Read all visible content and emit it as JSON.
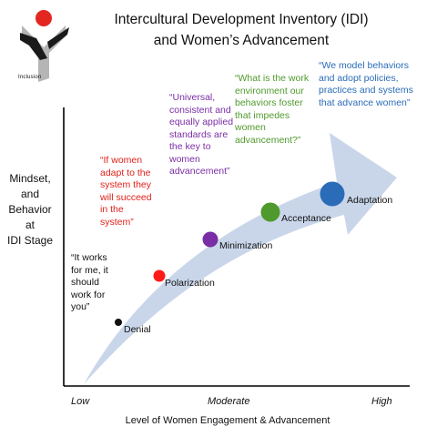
{
  "header": {
    "title_line1": "Intercultural Development Inventory (IDI)",
    "title_line2": "and Women’s Advancement"
  },
  "logo": {
    "text": "Inclusion",
    "colors": {
      "red": "#e3261f",
      "black": "#1a1a1a",
      "gray": "#b5b5b5"
    }
  },
  "axes": {
    "y_label_lines": [
      "Mindset,",
      "and",
      "Behavior",
      "at",
      "IDI Stage"
    ],
    "x_label": "Level of Women Engagement & Advancement",
    "x_ticks": [
      "Low",
      "Moderate",
      "High"
    ]
  },
  "stages": [
    {
      "label": "Denial",
      "color": "#111111"
    },
    {
      "label": "Polarization",
      "color": "#ff1a1a"
    },
    {
      "label": "Minimization",
      "color": "#7a2ea5"
    },
    {
      "label": "Acceptance",
      "color": "#4f9a2c"
    },
    {
      "label": "Adaptation",
      "color": "#2a6cb8"
    }
  ],
  "quotes": [
    {
      "lines": [
        "“It works",
        "for me, it",
        "should",
        "work for",
        "you”"
      ],
      "color": "#111111"
    },
    {
      "lines": [
        "“If women",
        "adapt to the",
        "system they",
        "will succeed",
        "in the",
        "system”"
      ],
      "color": "#e0201a"
    },
    {
      "lines": [
        "“Universal,",
        "consistent and",
        "equally applied",
        "standards are",
        "the key to",
        "women",
        "advancement”"
      ],
      "color": "#7a2ea5"
    },
    {
      "lines": [
        "“What is the work",
        "environment our",
        "behaviors foster",
        "that impedes",
        "women",
        "advancement?”"
      ],
      "color": "#4f9a2c"
    },
    {
      "lines": [
        "“We model behaviors",
        "and adopt policies,",
        "practices and systems",
        "that advance women”"
      ],
      "color": "#2a6cb8"
    }
  ],
  "colors": {
    "arrow": "#c9d6ea",
    "axis": "#000000"
  }
}
